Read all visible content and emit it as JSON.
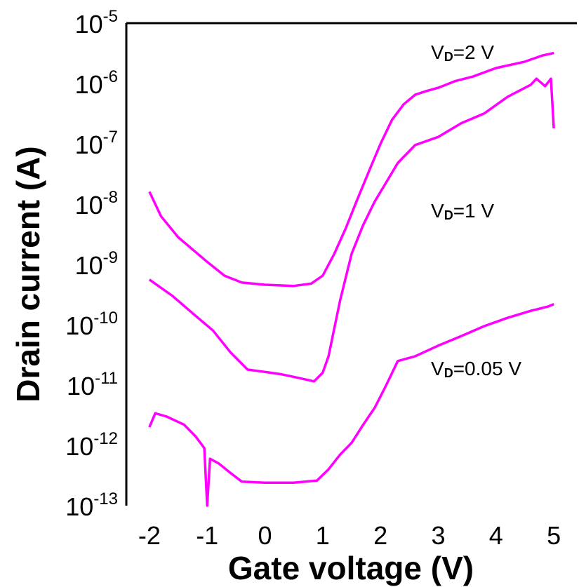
{
  "chart_data": {
    "type": "line",
    "title": "",
    "xlabel": "Gate voltage (V)",
    "ylabel": "Drain current (A)",
    "xlim": [
      -2.4,
      5.4
    ],
    "ylim_exponent": [
      -13,
      -5
    ],
    "y_scale": "log",
    "grid": false,
    "legend": "none",
    "line_color": "#ff00ff",
    "x_ticks": [
      "-2",
      "-1",
      "0",
      "1",
      "2",
      "3",
      "4",
      "5"
    ],
    "y_ticks": [
      {
        "base": "10",
        "exp": "-5"
      },
      {
        "base": "10",
        "exp": "-6"
      },
      {
        "base": "10",
        "exp": "-7"
      },
      {
        "base": "10",
        "exp": "-8"
      },
      {
        "base": "10",
        "exp": "-9"
      },
      {
        "base": "10",
        "exp": "-10"
      },
      {
        "base": "10",
        "exp": "-11"
      },
      {
        "base": "10",
        "exp": "-12"
      },
      {
        "base": "10",
        "exp": "-13"
      }
    ],
    "annotations": [
      {
        "main": "V",
        "sub": "D",
        "rest": "=2 V"
      },
      {
        "main": "V",
        "sub": "D",
        "rest": "=1 V"
      },
      {
        "main": "V",
        "sub": "D",
        "rest": "=0.05 V"
      }
    ],
    "series": [
      {
        "name": "VD=2 V",
        "points": [
          [
            -2.0,
            1.6e-08
          ],
          [
            -1.8,
            6.3e-09
          ],
          [
            -1.5,
            2.8e-09
          ],
          [
            -1.2,
            1.6e-09
          ],
          [
            -1.0,
            1.1e-09
          ],
          [
            -0.7,
            6.5e-10
          ],
          [
            -0.4,
            5e-10
          ],
          [
            0.0,
            4.6e-10
          ],
          [
            0.5,
            4.4e-10
          ],
          [
            0.8,
            4.8e-10
          ],
          [
            1.0,
            6.5e-10
          ],
          [
            1.2,
            1.5e-09
          ],
          [
            1.4,
            4e-09
          ],
          [
            1.6,
            1.2e-08
          ],
          [
            1.8,
            3.5e-08
          ],
          [
            2.0,
            1e-07
          ],
          [
            2.2,
            2.5e-07
          ],
          [
            2.4,
            4.5e-07
          ],
          [
            2.6,
            6.5e-07
          ],
          [
            2.8,
            7.5e-07
          ],
          [
            3.0,
            8.5e-07
          ],
          [
            3.3,
            1.1e-06
          ],
          [
            3.6,
            1.3e-06
          ],
          [
            4.0,
            1.8e-06
          ],
          [
            4.5,
            2.3e-06
          ],
          [
            4.8,
            2.9e-06
          ],
          [
            5.0,
            3.2e-06
          ]
        ]
      },
      {
        "name": "VD=1 V",
        "points": [
          [
            -2.0,
            5.6e-10
          ],
          [
            -1.6,
            3e-10
          ],
          [
            -1.2,
            1.4e-10
          ],
          [
            -0.9,
            8e-11
          ],
          [
            -0.6,
            3.5e-11
          ],
          [
            -0.3,
            1.8e-11
          ],
          [
            0.0,
            1.65e-11
          ],
          [
            0.3,
            1.5e-11
          ],
          [
            0.6,
            1.3e-11
          ],
          [
            0.85,
            1.15e-11
          ],
          [
            1.0,
            1.6e-11
          ],
          [
            1.1,
            3e-11
          ],
          [
            1.3,
            2.5e-10
          ],
          [
            1.5,
            1.5e-09
          ],
          [
            1.7,
            4.5e-09
          ],
          [
            1.9,
            1.1e-08
          ],
          [
            2.1,
            2.3e-08
          ],
          [
            2.3,
            4.8e-08
          ],
          [
            2.6,
            9.5e-08
          ],
          [
            3.0,
            1.3e-07
          ],
          [
            3.4,
            2.2e-07
          ],
          [
            3.8,
            3.2e-07
          ],
          [
            4.2,
            6e-07
          ],
          [
            4.6,
            9.5e-07
          ],
          [
            4.7,
            1.2e-06
          ],
          [
            4.85,
            9e-07
          ],
          [
            4.95,
            1.2e-06
          ],
          [
            5.0,
            1.8e-07
          ]
        ]
      },
      {
        "name": "VD=0.05 V",
        "points": [
          [
            -2.0,
            2e-12
          ],
          [
            -1.9,
            3.4e-12
          ],
          [
            -1.7,
            3e-12
          ],
          [
            -1.4,
            2.2e-12
          ],
          [
            -1.2,
            1.4e-12
          ],
          [
            -1.05,
            9e-13
          ],
          [
            -1.0,
            1e-13
          ],
          [
            -0.95,
            6e-13
          ],
          [
            -0.8,
            5e-13
          ],
          [
            -0.6,
            3.5e-13
          ],
          [
            -0.4,
            2.5e-13
          ],
          [
            0.0,
            2.4e-13
          ],
          [
            0.5,
            2.4e-13
          ],
          [
            0.9,
            2.6e-13
          ],
          [
            1.1,
            4e-13
          ],
          [
            1.3,
            7e-13
          ],
          [
            1.5,
            1.1e-12
          ],
          [
            1.7,
            2.2e-12
          ],
          [
            1.9,
            4.2e-12
          ],
          [
            2.1,
            1e-11
          ],
          [
            2.3,
            2.5e-11
          ],
          [
            2.6,
            3e-11
          ],
          [
            3.0,
            4.5e-11
          ],
          [
            3.4,
            6.5e-11
          ],
          [
            3.8,
            9.5e-11
          ],
          [
            4.2,
            1.3e-10
          ],
          [
            4.6,
            1.7e-10
          ],
          [
            4.9,
            2e-10
          ],
          [
            5.0,
            2.2e-10
          ]
        ]
      }
    ]
  }
}
